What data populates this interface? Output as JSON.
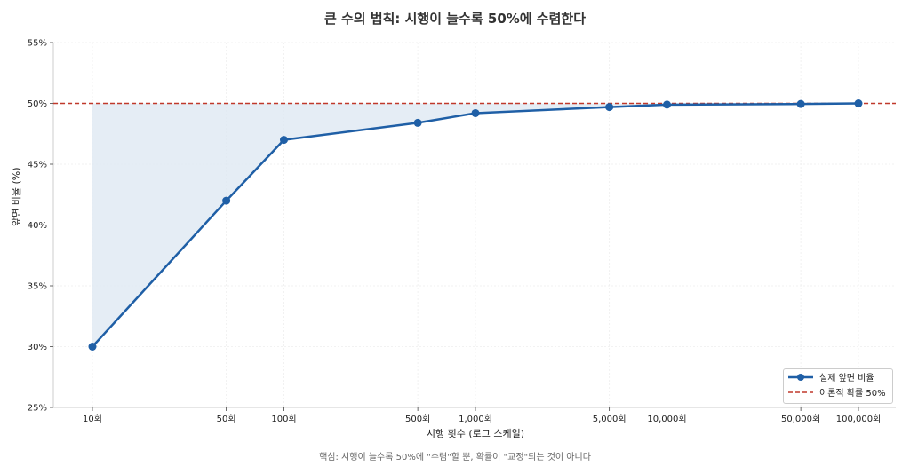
{
  "chart_data": {
    "type": "line",
    "title": "큰 수의 법칙: 시행이 늘수록 50%에 수렴한다",
    "xlabel": "시행 횟수 (로그 스케일)",
    "ylabel": "앞면 비율 (%)",
    "x_scale": "log",
    "categories": [
      "10회",
      "50회",
      "100회",
      "500회",
      "1,000회",
      "5,000회",
      "10,000회",
      "50,000회",
      "100,000회"
    ],
    "x": [
      10,
      50,
      100,
      500,
      1000,
      5000,
      10000,
      50000,
      100000
    ],
    "series": [
      {
        "name": "실제 앞면 비율",
        "values": [
          30.0,
          42.0,
          47.0,
          48.4,
          49.2,
          49.7,
          49.9,
          49.95,
          50.0
        ],
        "color": "#1f5fa6",
        "style": "solid",
        "marker": "circle"
      },
      {
        "name": "이론적 확률 50%",
        "values": [
          50,
          50,
          50,
          50,
          50,
          50,
          50,
          50,
          50
        ],
        "color": "#c0392b",
        "style": "dashed"
      }
    ],
    "yticks": [
      "25%",
      "30%",
      "35%",
      "40%",
      "45%",
      "50%",
      "55%"
    ],
    "ylim": [
      25,
      55
    ],
    "grid": true,
    "legend_position": "lower right",
    "fill_between": {
      "from_series": "실제 앞면 비율",
      "to": 50,
      "color": "#dfe8f3"
    }
  },
  "footnote": "핵심: 시행이 늘수록 50%에 \"수렴\"할 뿐, 확률이 \"교정\"되는 것이 아니다",
  "legend": {
    "items": [
      {
        "label": "실제 앞면 비율"
      },
      {
        "label": "이론적 확률 50%"
      }
    ]
  }
}
